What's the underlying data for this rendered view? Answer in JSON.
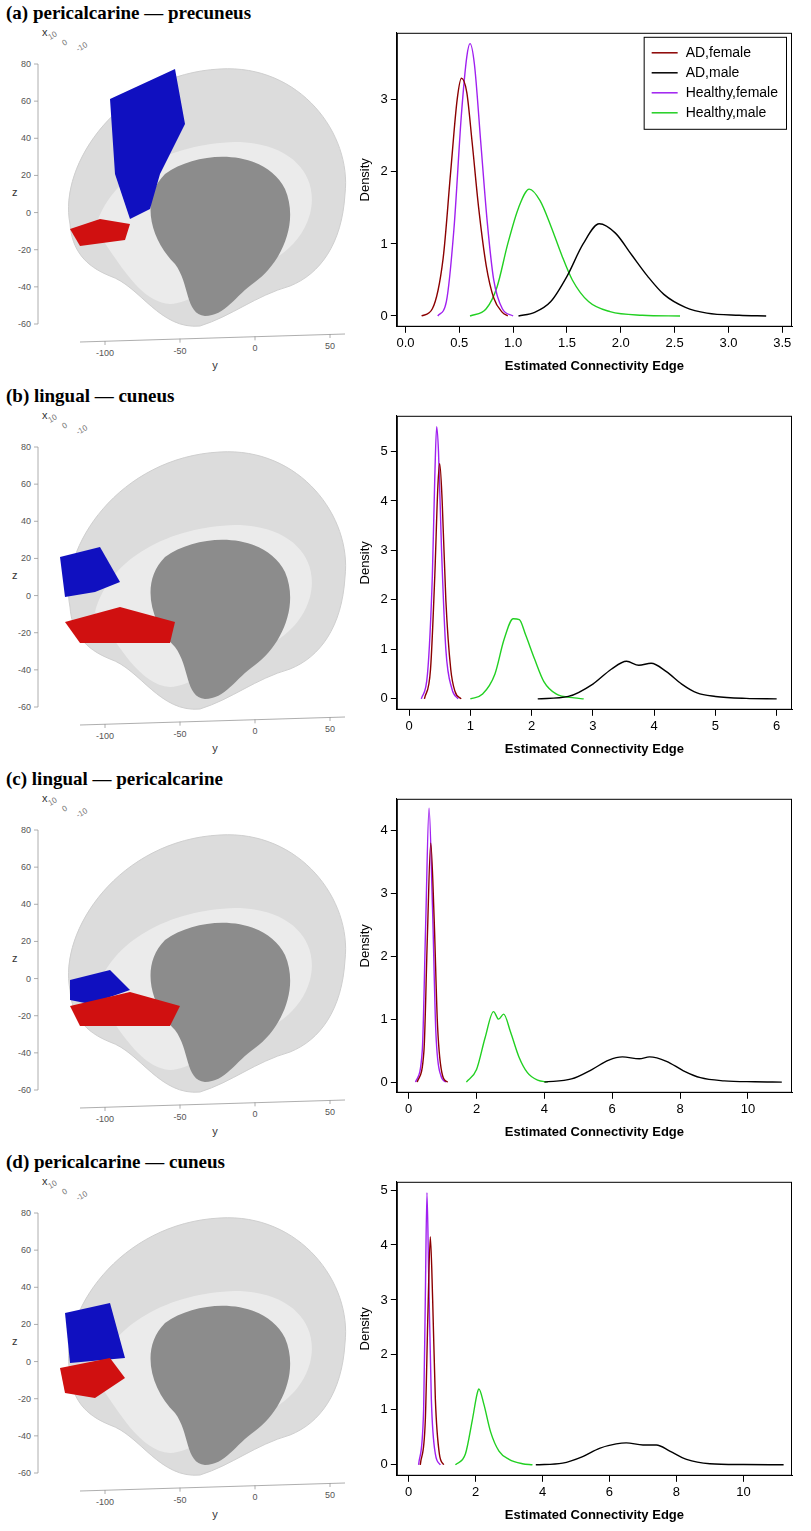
{
  "chart_data": [
    {
      "type": "line",
      "title": "(a) pericalcarine — precuneus",
      "x_label": "Estimated Connectivity Edge",
      "y_label": "Density",
      "xlim": [
        -0.08,
        3.59
      ],
      "ylim": [
        -0.15,
        3.93
      ],
      "xticks": [
        {
          "value": 0,
          "label": "0.0"
        },
        0.5,
        {
          "value": 1,
          "label": "1.0"
        },
        1.5,
        {
          "value": 2,
          "label": "2.0"
        },
        2.5,
        {
          "value": 3,
          "label": "3.0"
        },
        3.5
      ],
      "yticks": [
        0,
        1,
        2,
        3
      ],
      "grid": false,
      "legend": "upper right",
      "series": [
        {
          "name": "AD,female",
          "color": "#8b0000",
          "x": [
            0.15,
            0.25,
            0.35,
            0.42,
            0.48,
            0.52,
            0.57,
            0.62,
            0.68,
            0.75,
            0.82,
            0.9,
            0.95
          ],
          "values": [
            0,
            0.1,
            0.8,
            2.0,
            3.0,
            3.3,
            3.1,
            2.4,
            1.5,
            0.7,
            0.25,
            0.05,
            0
          ]
        },
        {
          "name": "AD,male",
          "color": "#000000",
          "x": [
            1.05,
            1.2,
            1.35,
            1.5,
            1.65,
            1.8,
            1.95,
            2.1,
            2.25,
            2.4,
            2.6,
            2.8,
            3.1,
            3.35
          ],
          "values": [
            0,
            0.05,
            0.2,
            0.55,
            1.0,
            1.28,
            1.15,
            0.85,
            0.55,
            0.3,
            0.12,
            0.04,
            0.01,
            0
          ]
        },
        {
          "name": "Healthy,female",
          "color": "#a020f0",
          "x": [
            0.3,
            0.38,
            0.45,
            0.52,
            0.57,
            0.6,
            0.64,
            0.7,
            0.76,
            0.82,
            0.9,
            1.0
          ],
          "values": [
            0,
            0.2,
            1.2,
            2.8,
            3.6,
            3.78,
            3.5,
            2.4,
            1.3,
            0.5,
            0.1,
            0
          ]
        },
        {
          "name": "Healthy,male",
          "color": "#22d022",
          "x": [
            0.6,
            0.75,
            0.85,
            0.95,
            1.05,
            1.15,
            1.25,
            1.35,
            1.45,
            1.55,
            1.7,
            1.9,
            2.2,
            2.55
          ],
          "values": [
            0,
            0.1,
            0.4,
            1.0,
            1.5,
            1.76,
            1.6,
            1.25,
            0.85,
            0.5,
            0.2,
            0.06,
            0.01,
            0
          ]
        }
      ]
    },
    {
      "type": "line",
      "title": "(b) lingual — cuneus",
      "x_label": "Estimated Connectivity Edge",
      "y_label": "Density",
      "xlim": [
        -0.2,
        6.25
      ],
      "ylim": [
        -0.22,
        5.72
      ],
      "xticks": [
        0,
        1,
        2,
        3,
        4,
        5,
        6
      ],
      "yticks": [
        0,
        1,
        2,
        3,
        4,
        5
      ],
      "grid": false,
      "series": [
        {
          "name": "AD,female",
          "color": "#8b0000",
          "x": [
            0.25,
            0.35,
            0.42,
            0.47,
            0.5,
            0.54,
            0.6,
            0.68,
            0.75,
            0.85
          ],
          "values": [
            0,
            0.6,
            2.5,
            4.3,
            4.75,
            4.0,
            2.0,
            0.6,
            0.15,
            0
          ]
        },
        {
          "name": "AD,male",
          "color": "#000000",
          "x": [
            2.1,
            2.6,
            3.0,
            3.3,
            3.55,
            3.75,
            3.95,
            4.2,
            4.45,
            4.7,
            5.0,
            5.5,
            6.0
          ],
          "values": [
            0,
            0.05,
            0.3,
            0.6,
            0.76,
            0.68,
            0.72,
            0.55,
            0.3,
            0.12,
            0.05,
            0.01,
            0
          ]
        },
        {
          "name": "Healthy,female",
          "color": "#a020f0",
          "x": [
            0.2,
            0.3,
            0.38,
            0.42,
            0.45,
            0.48,
            0.53,
            0.6,
            0.7,
            0.8
          ],
          "values": [
            0,
            0.5,
            2.5,
            4.5,
            5.5,
            5.0,
            3.0,
            1.0,
            0.2,
            0
          ]
        },
        {
          "name": "Healthy,male",
          "color": "#22d022",
          "x": [
            1.0,
            1.2,
            1.4,
            1.55,
            1.7,
            1.8,
            1.9,
            2.05,
            2.2,
            2.4,
            2.7,
            2.85
          ],
          "values": [
            0,
            0.1,
            0.5,
            1.2,
            1.62,
            1.6,
            1.3,
            0.8,
            0.35,
            0.1,
            0.02,
            0
          ]
        }
      ]
    },
    {
      "type": "line",
      "title": "(c) lingual — pericalcarine",
      "x_label": "Estimated Connectivity Edge",
      "y_label": "Density",
      "xlim": [
        -0.35,
        11.3
      ],
      "ylim": [
        -0.17,
        4.5
      ],
      "xticks": [
        0,
        2,
        4,
        6,
        8,
        10
      ],
      "yticks": [
        0,
        1,
        2,
        3,
        4
      ],
      "grid": false,
      "series": [
        {
          "name": "AD,female",
          "color": "#8b0000",
          "x": [
            0.25,
            0.45,
            0.55,
            0.65,
            0.75,
            0.85,
            1.0,
            1.15
          ],
          "values": [
            0,
            0.5,
            2.3,
            3.8,
            2.6,
            0.9,
            0.1,
            0
          ]
        },
        {
          "name": "AD,male",
          "color": "#000000",
          "x": [
            4.0,
            4.8,
            5.4,
            5.9,
            6.3,
            6.8,
            7.1,
            7.6,
            8.1,
            8.6,
            9.3,
            10.2,
            11.0
          ],
          "values": [
            0,
            0.05,
            0.2,
            0.35,
            0.4,
            0.37,
            0.4,
            0.33,
            0.18,
            0.07,
            0.02,
            0.005,
            0
          ]
        },
        {
          "name": "Healthy,female",
          "color": "#a020f0",
          "x": [
            0.2,
            0.4,
            0.5,
            0.6,
            0.7,
            0.8,
            0.95,
            1.1
          ],
          "values": [
            0,
            0.5,
            2.5,
            4.35,
            2.8,
            0.8,
            0.1,
            0
          ]
        },
        {
          "name": "Healthy,male",
          "color": "#22d022",
          "x": [
            1.7,
            2.0,
            2.25,
            2.5,
            2.65,
            2.8,
            3.0,
            3.25,
            3.5,
            3.8,
            4.1
          ],
          "values": [
            0,
            0.2,
            0.7,
            1.12,
            1.0,
            1.08,
            0.8,
            0.4,
            0.15,
            0.03,
            0
          ]
        }
      ]
    },
    {
      "type": "line",
      "title": "(d) pericalcarine — cuneus",
      "x_label": "Estimated Connectivity Edge",
      "y_label": "Density",
      "xlim": [
        -0.35,
        11.45
      ],
      "ylim": [
        -0.2,
        5.15
      ],
      "xticks": [
        0,
        2,
        4,
        6,
        8,
        10
      ],
      "yticks": [
        0,
        1,
        2,
        3,
        4,
        5
      ],
      "grid": false,
      "series": [
        {
          "name": "AD,female",
          "color": "#8b0000",
          "x": [
            0.35,
            0.5,
            0.58,
            0.65,
            0.72,
            0.8,
            0.92,
            1.05
          ],
          "values": [
            0,
            0.8,
            2.8,
            4.15,
            3.0,
            1.2,
            0.2,
            0
          ]
        },
        {
          "name": "AD,male",
          "color": "#000000",
          "x": [
            3.8,
            4.6,
            5.2,
            5.7,
            6.2,
            6.5,
            7.0,
            7.4,
            7.8,
            8.3,
            9.0,
            10.0,
            11.2
          ],
          "values": [
            0,
            0.03,
            0.15,
            0.3,
            0.38,
            0.4,
            0.36,
            0.36,
            0.25,
            0.1,
            0.02,
            0.005,
            0
          ]
        },
        {
          "name": "Healthy,female",
          "color": "#a020f0",
          "x": [
            0.3,
            0.45,
            0.5,
            0.55,
            0.6,
            0.68,
            0.8,
            0.95
          ],
          "values": [
            0,
            1.0,
            3.0,
            4.95,
            3.5,
            1.2,
            0.2,
            0
          ]
        },
        {
          "name": "Healthy,male",
          "color": "#22d022",
          "x": [
            1.4,
            1.7,
            1.9,
            2.05,
            2.1,
            2.25,
            2.45,
            2.7,
            3.0,
            3.4,
            3.7
          ],
          "values": [
            0,
            0.2,
            0.8,
            1.3,
            1.38,
            1.1,
            0.6,
            0.25,
            0.1,
            0.02,
            0
          ]
        }
      ]
    }
  ],
  "brain_views": [
    {
      "axis_labels": [
        "x",
        "y",
        "z"
      ],
      "xticks": [
        10,
        0,
        -10
      ],
      "yticks": [
        -100,
        -50,
        0,
        50
      ],
      "zticks": [
        80,
        60,
        40,
        20,
        0,
        -20,
        -40,
        -60
      ]
    },
    {
      "axis_labels": [
        "x",
        "y",
        "z"
      ],
      "xticks": [
        10,
        0,
        -10
      ],
      "yticks": [
        -100,
        -50,
        0,
        50
      ],
      "zticks": [
        80,
        60,
        40,
        20,
        0,
        -20,
        -40,
        -60
      ]
    },
    {
      "axis_labels": [
        "x",
        "y",
        "z"
      ],
      "xticks": [
        10,
        0,
        -10
      ],
      "yticks": [
        -100,
        -50,
        0,
        50
      ],
      "zticks": [
        80,
        60,
        40,
        20,
        0,
        -20,
        -40,
        -60
      ]
    },
    {
      "axis_labels": [
        "x",
        "y",
        "z"
      ],
      "xticks": [
        10,
        0,
        -10
      ],
      "yticks": [
        -100,
        -50,
        0,
        50
      ],
      "zticks": [
        80,
        60,
        40,
        20,
        0,
        -20,
        -40,
        -60
      ]
    }
  ]
}
